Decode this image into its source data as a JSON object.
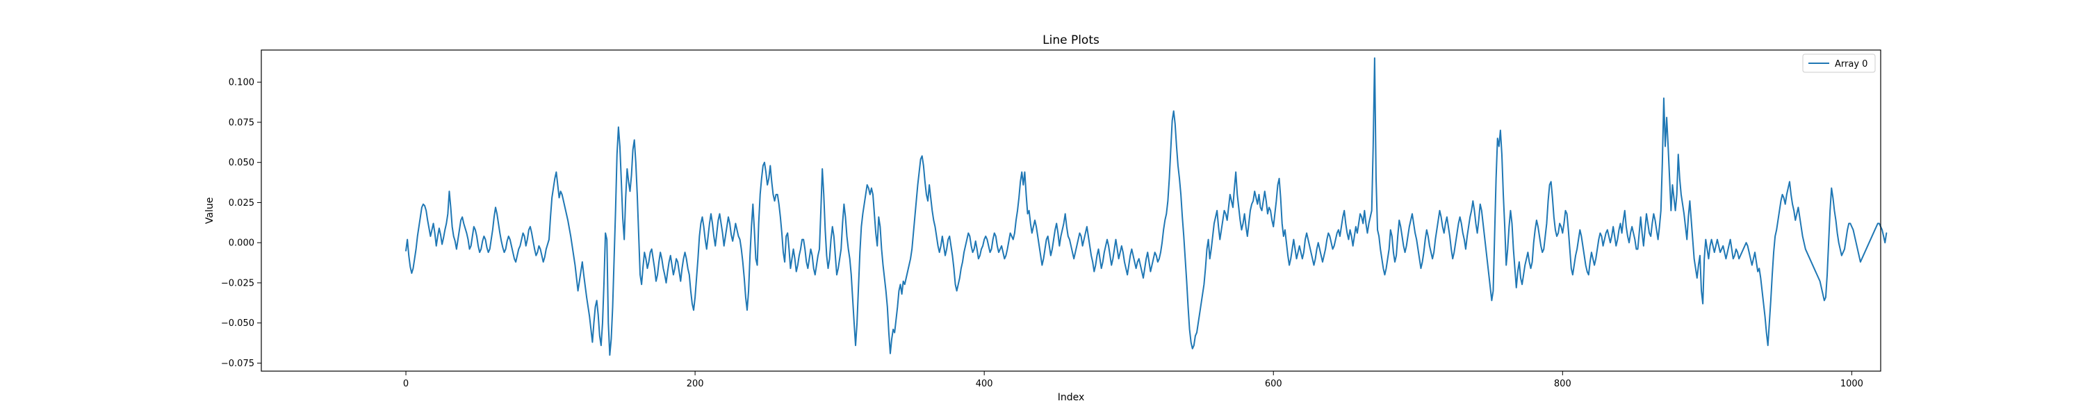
{
  "chart_data": {
    "type": "line",
    "title": "Line Plots",
    "xlabel": "Index",
    "ylabel": "Value",
    "xlim": [
      -100,
      1020
    ],
    "ylim": [
      -0.08,
      0.12
    ],
    "xticks": [
      0,
      200,
      400,
      600,
      800,
      1000
    ],
    "xtick_labels": [
      "0",
      "200",
      "400",
      "600",
      "800",
      "1000"
    ],
    "yticks": [
      -0.075,
      -0.05,
      -0.025,
      0.0,
      0.025,
      0.05,
      0.075,
      0.1
    ],
    "ytick_labels": [
      "−0.075",
      "−0.050",
      "−0.025",
      "0.000",
      "0.025",
      "0.050",
      "0.075",
      "0.100"
    ],
    "grid": false,
    "legend_position": "top-right",
    "series": [
      {
        "name": "Array 0",
        "color": "#1f77b4",
        "x_start": 0,
        "x_step": 1,
        "values": [
          -0.005,
          0.002,
          -0.008,
          -0.015,
          -0.019,
          -0.016,
          -0.01,
          -0.004,
          0.004,
          0.01,
          0.016,
          0.022,
          0.024,
          0.023,
          0.02,
          0.014,
          0.009,
          0.004,
          0.008,
          0.012,
          0.006,
          -0.002,
          0.004,
          0.009,
          0.005,
          -0.001,
          0.003,
          0.008,
          0.012,
          0.018,
          0.032,
          0.022,
          0.01,
          0.004,
          0.001,
          -0.004,
          0.002,
          0.008,
          0.014,
          0.016,
          0.012,
          0.009,
          0.006,
          0.002,
          -0.004,
          -0.002,
          0.004,
          0.01,
          0.008,
          0.004,
          -0.002,
          -0.006,
          -0.004,
          0.001,
          0.004,
          0.002,
          -0.003,
          -0.006,
          -0.004,
          0.002,
          0.008,
          0.016,
          0.022,
          0.018,
          0.012,
          0.006,
          0.001,
          -0.003,
          -0.006,
          -0.004,
          0.001,
          0.004,
          0.002,
          -0.002,
          -0.006,
          -0.01,
          -0.012,
          -0.008,
          -0.004,
          -0.002,
          0.002,
          0.006,
          0.004,
          -0.002,
          0.002,
          0.008,
          0.01,
          0.006,
          0.001,
          -0.004,
          -0.008,
          -0.006,
          -0.002,
          -0.004,
          -0.008,
          -0.012,
          -0.009,
          -0.004,
          -0.001,
          0.002,
          0.016,
          0.028,
          0.034,
          0.04,
          0.044,
          0.036,
          0.028,
          0.032,
          0.03,
          0.026,
          0.022,
          0.018,
          0.014,
          0.009,
          0.004,
          -0.002,
          -0.008,
          -0.014,
          -0.022,
          -0.03,
          -0.024,
          -0.018,
          -0.012,
          -0.02,
          -0.027,
          -0.034,
          -0.04,
          -0.046,
          -0.054,
          -0.062,
          -0.05,
          -0.04,
          -0.036,
          -0.045,
          -0.058,
          -0.064,
          -0.05,
          -0.025,
          0.006,
          0.002,
          -0.05,
          -0.07,
          -0.06,
          -0.04,
          -0.01,
          0.02,
          0.055,
          0.072,
          0.06,
          0.038,
          0.015,
          0.002,
          0.028,
          0.046,
          0.038,
          0.032,
          0.042,
          0.058,
          0.064,
          0.05,
          0.03,
          0.005,
          -0.02,
          -0.026,
          -0.015,
          -0.006,
          -0.01,
          -0.016,
          -0.012,
          -0.006,
          -0.004,
          -0.01,
          -0.016,
          -0.024,
          -0.02,
          -0.012,
          -0.006,
          -0.01,
          -0.016,
          -0.02,
          -0.025,
          -0.018,
          -0.012,
          -0.008,
          -0.014,
          -0.02,
          -0.016,
          -0.01,
          -0.012,
          -0.018,
          -0.024,
          -0.016,
          -0.01,
          -0.006,
          -0.01,
          -0.016,
          -0.02,
          -0.03,
          -0.038,
          -0.042,
          -0.034,
          -0.022,
          -0.01,
          0.004,
          0.012,
          0.016,
          0.01,
          0.002,
          -0.004,
          0.004,
          0.012,
          0.018,
          0.012,
          0.004,
          -0.002,
          0.006,
          0.014,
          0.018,
          0.012,
          0.006,
          -0.002,
          0.004,
          0.01,
          0.016,
          0.012,
          0.005,
          0.001,
          0.006,
          0.012,
          0.008,
          0.004,
          0.002,
          -0.004,
          -0.012,
          -0.022,
          -0.034,
          -0.042,
          -0.03,
          -0.008,
          0.01,
          0.024,
          0.008,
          -0.01,
          -0.014,
          0.012,
          0.03,
          0.04,
          0.048,
          0.05,
          0.044,
          0.036,
          0.04,
          0.048,
          0.038,
          0.03,
          0.026,
          0.03,
          0.03,
          0.024,
          0.016,
          0.006,
          -0.006,
          -0.012,
          0.004,
          0.006,
          -0.004,
          -0.016,
          -0.01,
          -0.004,
          -0.01,
          -0.018,
          -0.014,
          -0.008,
          -0.004,
          0.002,
          0.002,
          -0.004,
          -0.012,
          -0.016,
          -0.01,
          -0.004,
          -0.008,
          -0.016,
          -0.02,
          -0.014,
          -0.008,
          -0.004,
          0.02,
          0.046,
          0.03,
          0.008,
          -0.008,
          -0.016,
          -0.01,
          0.002,
          0.01,
          0.004,
          -0.008,
          -0.02,
          -0.016,
          -0.01,
          -0.004,
          0.012,
          0.024,
          0.016,
          0.004,
          -0.004,
          -0.01,
          -0.02,
          -0.035,
          -0.05,
          -0.064,
          -0.05,
          -0.028,
          -0.006,
          0.01,
          0.018,
          0.024,
          0.03,
          0.036,
          0.034,
          0.03,
          0.034,
          0.03,
          0.018,
          0.006,
          -0.002,
          0.016,
          0.01,
          -0.004,
          -0.014,
          -0.022,
          -0.03,
          -0.04,
          -0.056,
          -0.069,
          -0.06,
          -0.054,
          -0.056,
          -0.048,
          -0.04,
          -0.03,
          -0.026,
          -0.032,
          -0.024,
          -0.026,
          -0.022,
          -0.018,
          -0.014,
          -0.01,
          -0.004,
          0.006,
          0.016,
          0.026,
          0.036,
          0.044,
          0.052,
          0.054,
          0.048,
          0.038,
          0.03,
          0.026,
          0.036,
          0.028,
          0.02,
          0.014,
          0.01,
          0.004,
          -0.002,
          -0.006,
          -0.002,
          0.004,
          -0.002,
          -0.008,
          -0.004,
          0.002,
          0.004,
          -0.002,
          -0.008,
          -0.016,
          -0.026,
          -0.03,
          -0.026,
          -0.022,
          -0.016,
          -0.012,
          -0.006,
          -0.002,
          0.002,
          0.006,
          0.004,
          -0.002,
          -0.006,
          -0.004,
          0.001,
          -0.004,
          -0.01,
          -0.008,
          -0.004,
          -0.002,
          0.002,
          0.004,
          0.002,
          -0.002,
          -0.006,
          -0.004,
          0.002,
          0.006,
          0.004,
          -0.002,
          -0.006,
          -0.004,
          -0.002,
          -0.006,
          -0.01,
          -0.008,
          -0.004,
          0.001,
          0.006,
          0.004,
          0.002,
          0.006,
          0.014,
          0.02,
          0.028,
          0.038,
          0.044,
          0.036,
          0.044,
          0.03,
          0.018,
          0.02,
          0.012,
          0.006,
          0.01,
          0.014,
          0.01,
          0.004,
          -0.002,
          -0.008,
          -0.014,
          -0.01,
          -0.004,
          0.002,
          0.004,
          -0.002,
          -0.008,
          -0.004,
          0.002,
          0.008,
          0.012,
          0.006,
          -0.002,
          0.004,
          0.008,
          0.012,
          0.018,
          0.01,
          0.004,
          0.002,
          -0.002,
          -0.006,
          -0.01,
          -0.006,
          -0.002,
          0.002,
          0.006,
          0.004,
          -0.002,
          0.002,
          0.006,
          0.01,
          0.004,
          -0.002,
          -0.008,
          -0.012,
          -0.018,
          -0.014,
          -0.008,
          -0.004,
          -0.01,
          -0.016,
          -0.012,
          -0.006,
          -0.002,
          0.002,
          -0.002,
          -0.008,
          -0.014,
          -0.01,
          -0.004,
          0.002,
          -0.004,
          -0.01,
          -0.006,
          -0.002,
          -0.006,
          -0.012,
          -0.016,
          -0.02,
          -0.014,
          -0.008,
          -0.004,
          -0.008,
          -0.012,
          -0.016,
          -0.012,
          -0.01,
          -0.014,
          -0.018,
          -0.022,
          -0.016,
          -0.01,
          -0.006,
          -0.012,
          -0.018,
          -0.014,
          -0.01,
          -0.006,
          -0.008,
          -0.012,
          -0.01,
          -0.006,
          0.0,
          0.008,
          0.014,
          0.018,
          0.026,
          0.04,
          0.058,
          0.076,
          0.082,
          0.074,
          0.06,
          0.048,
          0.04,
          0.03,
          0.016,
          0.004,
          -0.01,
          -0.024,
          -0.04,
          -0.054,
          -0.062,
          -0.066,
          -0.064,
          -0.058,
          -0.056,
          -0.05,
          -0.044,
          -0.038,
          -0.032,
          -0.026,
          -0.016,
          -0.004,
          0.002,
          -0.01,
          -0.004,
          0.004,
          0.012,
          0.016,
          0.02,
          0.01,
          0.002,
          0.008,
          0.014,
          0.02,
          0.018,
          0.014,
          0.022,
          0.03,
          0.026,
          0.022,
          0.034,
          0.044,
          0.03,
          0.022,
          0.014,
          0.008,
          0.012,
          0.018,
          0.01,
          0.004,
          0.012,
          0.02,
          0.024,
          0.026,
          0.032,
          0.028,
          0.024,
          0.03,
          0.022,
          0.02,
          0.026,
          0.032,
          0.026,
          0.018,
          0.022,
          0.02,
          0.014,
          0.01,
          0.018,
          0.026,
          0.036,
          0.04,
          0.028,
          0.012,
          0.004,
          0.008,
          0.0,
          -0.008,
          -0.014,
          -0.01,
          -0.004,
          0.002,
          -0.004,
          -0.01,
          -0.006,
          -0.002,
          -0.006,
          -0.01,
          -0.006,
          0.002,
          0.006,
          0.002,
          -0.002,
          -0.006,
          -0.01,
          -0.014,
          -0.01,
          -0.004,
          0.0,
          -0.004,
          -0.008,
          -0.012,
          -0.008,
          -0.004,
          0.002,
          0.006,
          0.004,
          0.0,
          -0.004,
          -0.002,
          0.002,
          0.006,
          0.008,
          0.004,
          0.01,
          0.016,
          0.02,
          0.012,
          0.006,
          0.002,
          0.008,
          0.004,
          -0.002,
          0.004,
          0.01,
          0.006,
          0.012,
          0.018,
          0.016,
          0.012,
          0.02,
          0.012,
          0.006,
          0.012,
          0.016,
          0.02,
          0.06,
          0.115,
          0.04,
          0.008,
          0.004,
          -0.004,
          -0.01,
          -0.016,
          -0.02,
          -0.016,
          -0.01,
          -0.004,
          0.008,
          0.004,
          -0.006,
          -0.012,
          -0.008,
          0.004,
          0.014,
          0.01,
          0.004,
          -0.002,
          -0.006,
          -0.002,
          0.004,
          0.01,
          0.014,
          0.018,
          0.012,
          0.006,
          0.002,
          -0.004,
          -0.01,
          -0.016,
          -0.012,
          -0.006,
          0.002,
          0.008,
          0.004,
          -0.002,
          -0.006,
          -0.01,
          -0.006,
          0.002,
          0.008,
          0.014,
          0.02,
          0.016,
          0.01,
          0.006,
          0.012,
          0.016,
          0.01,
          0.004,
          -0.004,
          -0.01,
          -0.006,
          0.0,
          0.006,
          0.012,
          0.016,
          0.012,
          0.006,
          0.002,
          -0.004,
          0.004,
          0.01,
          0.016,
          0.02,
          0.026,
          0.02,
          0.012,
          0.006,
          0.014,
          0.024,
          0.02,
          0.012,
          0.004,
          -0.004,
          -0.012,
          -0.02,
          -0.028,
          -0.036,
          -0.03,
          0.005,
          0.04,
          0.065,
          0.06,
          0.07,
          0.055,
          0.03,
          0.01,
          -0.014,
          -0.004,
          0.01,
          0.02,
          0.012,
          -0.004,
          -0.016,
          -0.028,
          -0.018,
          -0.012,
          -0.022,
          -0.026,
          -0.02,
          -0.014,
          -0.01,
          -0.006,
          -0.012,
          -0.016,
          -0.012,
          0.0,
          0.008,
          0.014,
          0.01,
          0.004,
          -0.002,
          -0.006,
          -0.004,
          0.004,
          0.012,
          0.026,
          0.036,
          0.038,
          0.028,
          0.016,
          0.008,
          0.004,
          0.006,
          0.012,
          0.01,
          0.006,
          0.012,
          0.02,
          0.018,
          0.008,
          -0.004,
          -0.016,
          -0.02,
          -0.014,
          -0.008,
          -0.004,
          0.002,
          0.008,
          0.004,
          -0.002,
          -0.008,
          -0.014,
          -0.018,
          -0.02,
          -0.012,
          -0.006,
          -0.01,
          -0.014,
          -0.01,
          -0.004,
          0.002,
          0.006,
          0.004,
          -0.002,
          0.002,
          0.006,
          0.008,
          0.004,
          0.0,
          0.004,
          0.01,
          0.004,
          -0.002,
          0.002,
          0.008,
          0.012,
          0.006,
          0.014,
          0.02,
          0.01,
          0.004,
          0.0,
          0.006,
          0.01,
          0.006,
          0.002,
          -0.004,
          -0.004,
          0.006,
          0.016,
          0.006,
          -0.002,
          0.008,
          0.018,
          0.012,
          0.006,
          0.004,
          0.012,
          0.018,
          0.014,
          0.008,
          0.002,
          0.01,
          0.02,
          0.05,
          0.09,
          0.06,
          0.078,
          0.06,
          0.04,
          0.02,
          0.036,
          0.028,
          0.02,
          0.03,
          0.055,
          0.04,
          0.03,
          0.024,
          0.018,
          0.01,
          0.002,
          0.016,
          0.026,
          0.014,
          0.002,
          -0.01,
          -0.016,
          -0.022,
          -0.014,
          -0.008,
          -0.03,
          -0.038,
          -0.01,
          0.002,
          -0.004,
          -0.01,
          -0.002,
          0.002,
          -0.002,
          -0.006,
          -0.002,
          0.002,
          -0.002,
          -0.006,
          -0.004,
          -0.002,
          -0.006,
          -0.01,
          -0.006,
          -0.002,
          0.002,
          -0.004,
          -0.01,
          -0.008,
          -0.004,
          -0.006,
          -0.01,
          -0.008,
          -0.006,
          -0.004,
          -0.002,
          0.0,
          -0.002,
          -0.006,
          -0.01,
          -0.014,
          -0.01,
          -0.006,
          -0.012,
          -0.018,
          -0.016,
          -0.022,
          -0.03,
          -0.038,
          -0.046,
          -0.056,
          -0.064,
          -0.05,
          -0.036,
          -0.02,
          -0.006,
          0.004,
          0.008,
          0.014,
          0.02,
          0.026,
          0.03,
          0.028,
          0.024,
          0.03,
          0.034,
          0.038,
          0.03,
          0.024,
          0.02,
          0.014,
          0.018,
          0.022,
          0.016,
          0.01,
          0.004,
          0.0,
          -0.004,
          -0.006,
          -0.008,
          -0.01,
          -0.012,
          -0.014,
          -0.016,
          -0.018,
          -0.02,
          -0.022,
          -0.024,
          -0.028,
          -0.032,
          -0.036,
          -0.034,
          -0.02,
          0.0,
          0.02,
          0.034,
          0.028,
          0.02,
          0.014,
          0.006,
          0.0,
          -0.004,
          -0.008,
          -0.006,
          -0.004,
          0.002,
          0.008,
          0.012,
          0.012,
          0.01,
          0.008,
          0.004,
          0.0,
          -0.004,
          -0.008,
          -0.012,
          -0.01,
          -0.008,
          -0.006,
          -0.004,
          -0.002,
          0.0,
          0.002,
          0.004,
          0.006,
          0.008,
          0.01,
          0.012,
          0.012,
          0.01,
          0.008,
          0.004,
          0.0,
          0.006
        ]
      }
    ]
  }
}
